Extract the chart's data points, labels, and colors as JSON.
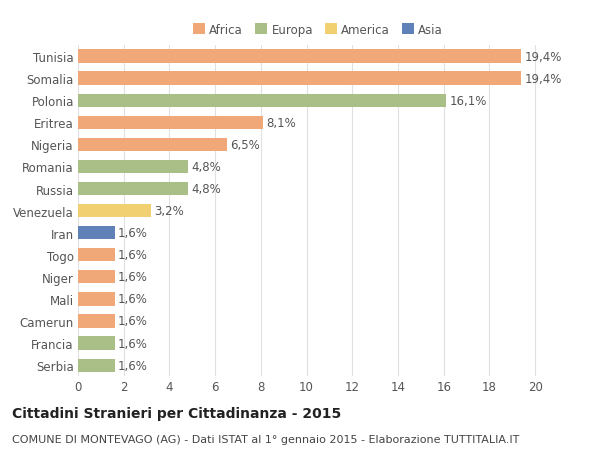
{
  "countries": [
    "Tunisia",
    "Somalia",
    "Polonia",
    "Eritrea",
    "Nigeria",
    "Romania",
    "Russia",
    "Venezuela",
    "Iran",
    "Togo",
    "Niger",
    "Mali",
    "Camerun",
    "Francia",
    "Serbia"
  ],
  "values": [
    19.4,
    19.4,
    16.1,
    8.1,
    6.5,
    4.8,
    4.8,
    3.2,
    1.6,
    1.6,
    1.6,
    1.6,
    1.6,
    1.6,
    1.6
  ],
  "percentages": [
    "19,4%",
    "19,4%",
    "16,1%",
    "8,1%",
    "6,5%",
    "4,8%",
    "4,8%",
    "3,2%",
    "1,6%",
    "1,6%",
    "1,6%",
    "1,6%",
    "1,6%",
    "1,6%",
    "1,6%"
  ],
  "categories": [
    "Africa",
    "Africa",
    "Europa",
    "Africa",
    "Africa",
    "Europa",
    "Europa",
    "America",
    "Asia",
    "Africa",
    "Africa",
    "Africa",
    "Africa",
    "Europa",
    "Europa"
  ],
  "colors": {
    "Africa": "#F0A878",
    "Europa": "#AABF88",
    "America": "#F0D070",
    "Asia": "#6080B8"
  },
  "legend_labels": [
    "Africa",
    "Europa",
    "America",
    "Asia"
  ],
  "legend_colors": [
    "#F0A878",
    "#AABF88",
    "#F0D070",
    "#6080B8"
  ],
  "xlim": [
    0,
    21
  ],
  "xticks": [
    0,
    2,
    4,
    6,
    8,
    10,
    12,
    14,
    16,
    18,
    20
  ],
  "title": "Cittadini Stranieri per Cittadinanza - 2015",
  "subtitle": "COMUNE DI MONTEVAGO (AG) - Dati ISTAT al 1° gennaio 2015 - Elaborazione TUTTITALIA.IT",
  "bg_color": "#ffffff",
  "grid_color": "#e0e0e0",
  "bar_height": 0.6,
  "title_fontsize": 10,
  "subtitle_fontsize": 8,
  "label_fontsize": 8.5,
  "tick_fontsize": 8.5
}
